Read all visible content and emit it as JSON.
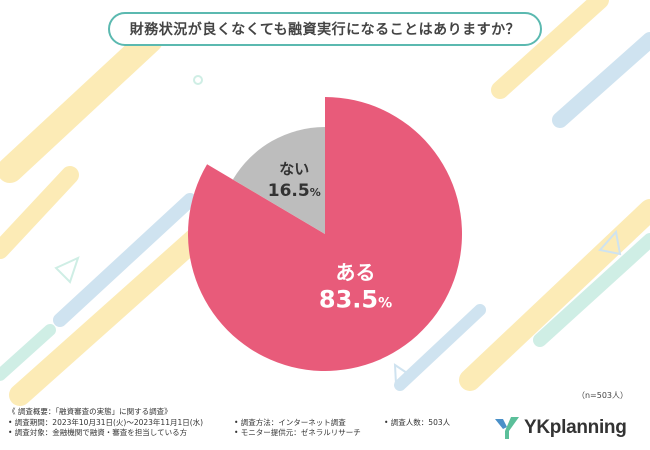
{
  "title": "財務状況が良くなくても融資実行になることはありますか？",
  "sample_size": "（n=503人）",
  "chart_data": {
    "type": "pie",
    "slices": [
      {
        "label": "ある",
        "value": 83.5,
        "display_value": "83.5",
        "unit": "%",
        "color": "#e85b7a"
      },
      {
        "label": "ない",
        "value": 16.5,
        "display_value": "16.5",
        "unit": "%",
        "color": "#bdbdbd"
      }
    ],
    "start": "top",
    "direction": "clockwise"
  },
  "footer": {
    "heading": "《 調査概要：「融資審査の実態」に関する調査》",
    "period": "• 調査期間：2023年10月31日(火)～2023年11月1日(水)",
    "method": "• 調査方法：インターネット調査",
    "count": "• 調査人数：503人",
    "target": "• 調査対象：金融機関で融資・審査を担当している方",
    "monitor": "• モニター提供元：ゼネラルリサーチ"
  },
  "logo": {
    "text": "YKplanning",
    "colors": [
      "#4a90c8",
      "#5bbf9a"
    ]
  },
  "background": {
    "colors": [
      "#fcebb6",
      "#cfe3f0",
      "#cfeee5"
    ]
  }
}
